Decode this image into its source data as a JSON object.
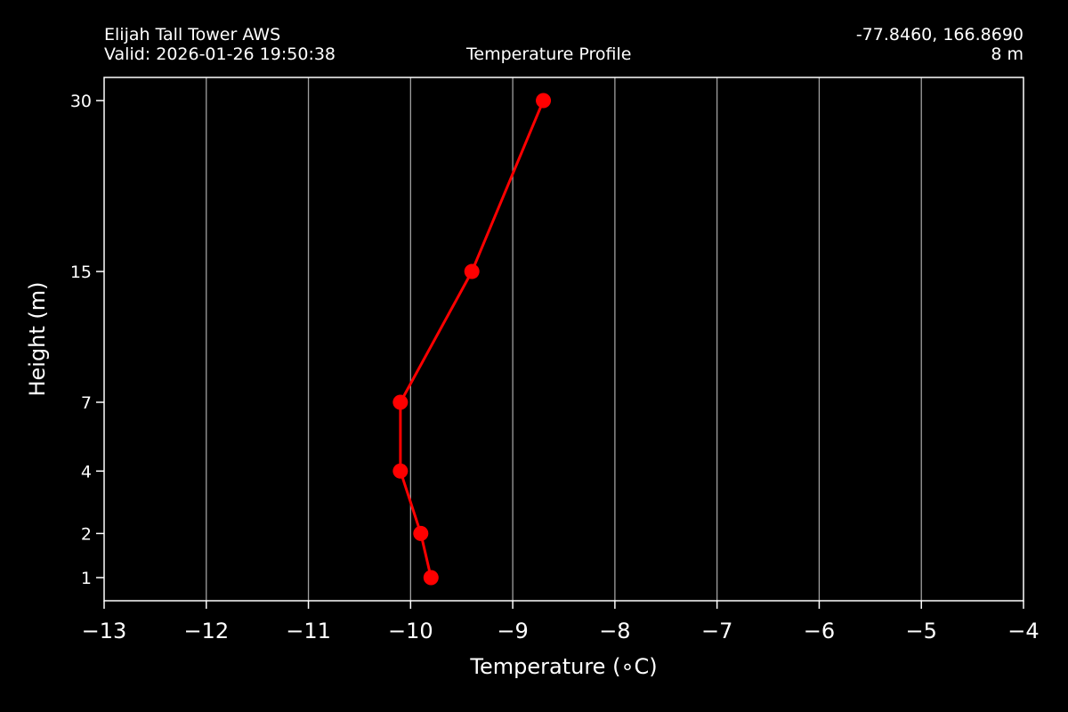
{
  "header": {
    "station_name": "Elijah Tall Tower AWS",
    "valid_time": "Valid: 2026-01-26 19:50:38",
    "plot_title": "Temperature Profile",
    "coordinates": "-77.8460, 166.8690",
    "elevation": "8 m"
  },
  "colors": {
    "background": "#000000",
    "foreground": "#ffffff",
    "grid": "#a0a0a0",
    "series": "#ff0000"
  },
  "chart_data": {
    "type": "line",
    "title": "Temperature Profile",
    "xlabel": "Temperature ($^\\circ$C)",
    "xlabel_display": "Temperature (∘C)",
    "ylabel": "Height (m)",
    "xlim": [
      -13,
      -4
    ],
    "ylim": [
      -0.5,
      31.5
    ],
    "x_ticks": [
      -13,
      -12,
      -11,
      -10,
      -9,
      -8,
      -7,
      -6,
      -5,
      -4
    ],
    "x_tick_labels": [
      "−13",
      "−12",
      "−11",
      "−10",
      "−9",
      "−8",
      "−7",
      "−6",
      "−5",
      "−4"
    ],
    "y_scale": "sqrt",
    "y_ticks": [
      1,
      2,
      4,
      7,
      15,
      30
    ],
    "y_tick_labels": [
      "1",
      "2",
      "4",
      "7",
      "15",
      "30"
    ],
    "grid": "vertical",
    "marker": "circle",
    "series": [
      {
        "x": [
          -9.8,
          -9.9,
          -10.1,
          -10.1,
          -9.4,
          -8.7
        ],
        "y": [
          1,
          2,
          4,
          7,
          15,
          30
        ]
      }
    ]
  }
}
